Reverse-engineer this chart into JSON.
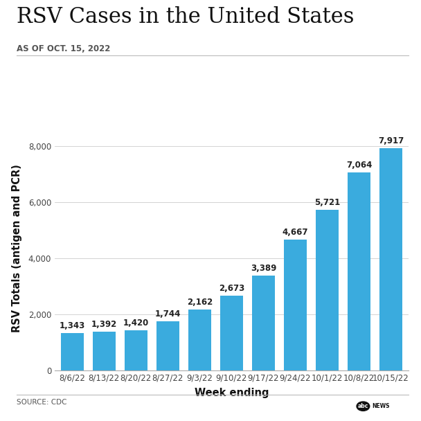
{
  "title": "RSV Cases in the United States",
  "subtitle": "AS OF OCT. 15, 2022",
  "categories": [
    "8/6/22",
    "8/13/22",
    "8/20/22",
    "8/27/22",
    "9/3/22",
    "9/10/22",
    "9/17/22",
    "9/24/22",
    "10/1/22",
    "10/8/22",
    "10/15/22"
  ],
  "values": [
    1343,
    1392,
    1420,
    1744,
    2162,
    2673,
    3389,
    4667,
    5721,
    7064,
    7917
  ],
  "bar_color": "#3aabde",
  "xlabel": "Week ending",
  "ylabel": "RSV Totals (antigen and PCR)",
  "ylim": [
    0,
    8700
  ],
  "yticks": [
    0,
    2000,
    4000,
    6000,
    8000
  ],
  "ytick_labels": [
    "0",
    "2,000",
    "4,000",
    "6,000",
    "8,000"
  ],
  "source_text": "SOURCE: CDC",
  "background_color": "#ffffff",
  "title_fontsize": 22,
  "subtitle_fontsize": 8.5,
  "axis_label_fontsize": 10.5,
  "tick_fontsize": 8.5,
  "bar_label_fontsize": 8.5
}
